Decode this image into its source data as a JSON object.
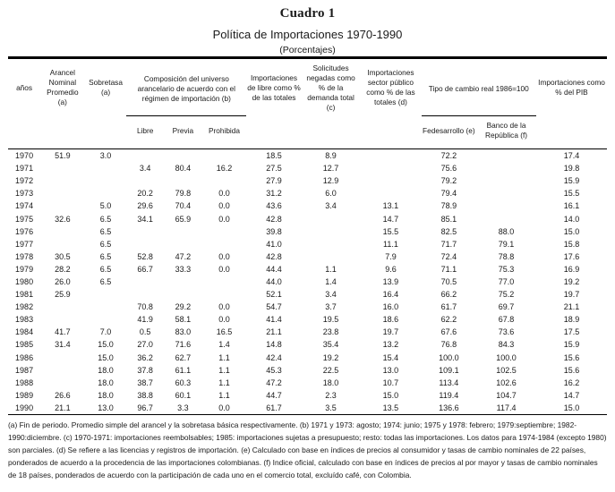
{
  "title": "Cuadro 1",
  "subtitle": "Política de Importaciones 1970-1990",
  "unit_label": "(Porcentajes)",
  "table": {
    "headers": {
      "anos": "años",
      "arancel": "Arancel Nominal Promedio (a)",
      "sobretasa": "Sobretasa (a)",
      "composicion": "Composición del universo arancelario de acuerdo con el régimen de importación (b)",
      "importaciones_libre": "Importaciones de libre como % de las totales",
      "solicitudes": "Solicitudes negadas como % de la demanda total (c)",
      "sector_publico": "Importaciones sector público como % de las totales (d)",
      "tipo_cambio": "Tipo de cambio real 1986=100",
      "pib": "Importaciones como % del PIB",
      "sub_libre": "Libre",
      "sub_previa": "Previa",
      "sub_prohibida": "Prohibida",
      "sub_fedesarrollo": "Fedesarrollo (e)",
      "sub_banco": "Banco de la República (f)"
    },
    "column_keys": [
      "year",
      "arancel",
      "sobretasa",
      "libre",
      "previa",
      "prohibida",
      "imp_libre",
      "solicitudes",
      "sector_publico",
      "fedesarrollo",
      "banco_republica",
      "pib"
    ],
    "rows": [
      [
        "1970",
        "51.9",
        "3.0",
        "",
        "",
        "",
        "18.5",
        "8.9",
        "",
        "72.2",
        "",
        "17.4"
      ],
      [
        "1971",
        "",
        "",
        "3.4",
        "80.4",
        "16.2",
        "27.5",
        "12.7",
        "",
        "75.6",
        "",
        "19.8"
      ],
      [
        "1972",
        "",
        "",
        "",
        "",
        "",
        "27.9",
        "12.9",
        "",
        "79.2",
        "",
        "15.9"
      ],
      [
        "1973",
        "",
        "",
        "20.2",
        "79.8",
        "0.0",
        "31.2",
        "6.0",
        "",
        "79.4",
        "",
        "15.5"
      ],
      [
        "1974",
        "",
        "5.0",
        "29.6",
        "70.4",
        "0.0",
        "43.6",
        "3.4",
        "13.1",
        "78.9",
        "",
        "16.1"
      ],
      [
        "1975",
        "32.6",
        "6.5",
        "34.1",
        "65.9",
        "0.0",
        "42.8",
        "",
        "14.7",
        "85.1",
        "",
        "14.0"
      ],
      [
        "1976",
        "",
        "6.5",
        "",
        "",
        "",
        "39.8",
        "",
        "15.5",
        "82.5",
        "88.0",
        "15.0"
      ],
      [
        "1977",
        "",
        "6.5",
        "",
        "",
        "",
        "41.0",
        "",
        "11.1",
        "71.7",
        "79.1",
        "15.8"
      ],
      [
        "1978",
        "30.5",
        "6.5",
        "52.8",
        "47.2",
        "0.0",
        "42.8",
        "",
        "7.9",
        "72.4",
        "78.8",
        "17.6"
      ],
      [
        "1979",
        "28.2",
        "6.5",
        "66.7",
        "33.3",
        "0.0",
        "44.4",
        "1.1",
        "9.6",
        "71.1",
        "75.3",
        "16.9"
      ],
      [
        "1980",
        "26.0",
        "6.5",
        "",
        "",
        "",
        "44.0",
        "1.4",
        "13.9",
        "70.5",
        "77.0",
        "19.2"
      ],
      [
        "1981",
        "25.9",
        "",
        "",
        "",
        "",
        "52.1",
        "3.4",
        "16.4",
        "66.2",
        "75.2",
        "19.7"
      ],
      [
        "1982",
        "",
        "",
        "70.8",
        "29.2",
        "0.0",
        "54.7",
        "3.7",
        "16.0",
        "61.7",
        "69.7",
        "21.1"
      ],
      [
        "1983",
        "",
        "",
        "41.9",
        "58.1",
        "0.0",
        "41.4",
        "19.5",
        "18.6",
        "62.2",
        "67.8",
        "18.9"
      ],
      [
        "1984",
        "41.7",
        "7.0",
        "0.5",
        "83.0",
        "16.5",
        "21.1",
        "23.8",
        "19.7",
        "67.6",
        "73.6",
        "17.5"
      ],
      [
        "1985",
        "31.4",
        "15.0",
        "27.0",
        "71.6",
        "1.4",
        "14.8",
        "35.4",
        "13.2",
        "76.8",
        "84.3",
        "15.9"
      ],
      [
        "1986",
        "",
        "15.0",
        "36.2",
        "62.7",
        "1.1",
        "42.4",
        "19.2",
        "15.4",
        "100.0",
        "100.0",
        "15.6"
      ],
      [
        "1987",
        "",
        "18.0",
        "37.8",
        "61.1",
        "1.1",
        "45.3",
        "22.5",
        "13.0",
        "109.1",
        "102.5",
        "15.6"
      ],
      [
        "1988",
        "",
        "18.0",
        "38.7",
        "60.3",
        "1.1",
        "47.2",
        "18.0",
        "10.7",
        "113.4",
        "102.6",
        "16.2"
      ],
      [
        "1989",
        "26.6",
        "18.0",
        "38.8",
        "60.1",
        "1.1",
        "44.7",
        "2.3",
        "15.0",
        "119.4",
        "104.7",
        "14.7"
      ],
      [
        "1990",
        "21.1",
        "13.0",
        "96.7",
        "3.3",
        "0.0",
        "61.7",
        "3.5",
        "13.5",
        "136.6",
        "117.4",
        "15.0"
      ]
    ]
  },
  "footnotes": "(a) Fin de periodo. Promedio simple del arancel y la sobretasa básica respectivamente. (b) 1971 y 1973: agosto; 1974: junio; 1975 y 1978: febrero; 1979:septiembre; 1982-1990:diciembre. (c) 1970-1971: importaciones reembolsables; 1985: importaciones sujetas a presupuesto; resto: todas las importaciones. Los datos para 1974-1984 (excepto 1980) son parciales. (d) Se refiere a las licencias y registros de importación. (e) Calculado con base en índices de precios al consumidor y tasas de cambio nominales de 22 países, ponderados de acuerdo a la procedencia de las importaciones colombianas. (f) Indice oficial, calculado con base en índices de precios al por mayor y tasas de cambio nominales de 18 países, ponderados de acuerdo con la participación de cada uno en el comercio total, excluído café, con Colombia."
}
